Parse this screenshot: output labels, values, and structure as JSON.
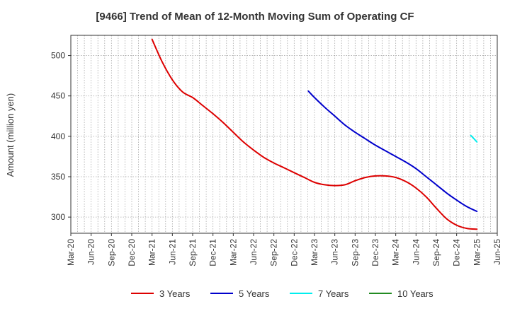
{
  "chart_data": {
    "type": "line",
    "title": "[9466]  Trend of Mean of 12-Month Moving Sum of Operating CF",
    "xlabel": "",
    "ylabel": "Amount (million yen)",
    "ylim": [
      280,
      525
    ],
    "yticks": [
      300,
      350,
      400,
      450,
      500
    ],
    "x_tick_labels": [
      "Mar-20",
      "Jun-20",
      "Sep-20",
      "Dec-20",
      "Mar-21",
      "Jun-21",
      "Sep-21",
      "Dec-21",
      "Mar-22",
      "Jun-22",
      "Sep-22",
      "Dec-22",
      "Mar-23",
      "Jun-23",
      "Sep-23",
      "Dec-23",
      "Mar-24",
      "Jun-24",
      "Sep-24",
      "Dec-24",
      "Mar-25",
      "Jun-25"
    ],
    "grid": true,
    "legend_position": "bottom",
    "series": [
      {
        "name": "3 Years",
        "color": "#dd0000",
        "points": [
          [
            4,
            520
          ],
          [
            4.5,
            492
          ],
          [
            5,
            470
          ],
          [
            5.5,
            455
          ],
          [
            6,
            448
          ],
          [
            6.5,
            438
          ],
          [
            7,
            428
          ],
          [
            7.5,
            417
          ],
          [
            8,
            405
          ],
          [
            8.5,
            393
          ],
          [
            9,
            383
          ],
          [
            9.5,
            374
          ],
          [
            10,
            367
          ],
          [
            10.5,
            361
          ],
          [
            11,
            355
          ],
          [
            11.5,
            349
          ],
          [
            12,
            343
          ],
          [
            12.5,
            340
          ],
          [
            13,
            339
          ],
          [
            13.5,
            340
          ],
          [
            14,
            345
          ],
          [
            14.5,
            349
          ],
          [
            15,
            351
          ],
          [
            15.5,
            351
          ],
          [
            16,
            349
          ],
          [
            16.5,
            344
          ],
          [
            17,
            336
          ],
          [
            17.5,
            325
          ],
          [
            18,
            311
          ],
          [
            18.5,
            298
          ],
          [
            19,
            290
          ],
          [
            19.5,
            286
          ],
          [
            20,
            285
          ]
        ]
      },
      {
        "name": "5 Years",
        "color": "#0000cc",
        "points": [
          [
            11.7,
            456
          ],
          [
            12,
            448
          ],
          [
            12.5,
            436
          ],
          [
            13,
            425
          ],
          [
            13.5,
            414
          ],
          [
            14,
            405
          ],
          [
            14.5,
            397
          ],
          [
            15,
            389
          ],
          [
            15.5,
            382
          ],
          [
            16,
            375
          ],
          [
            16.5,
            368
          ],
          [
            17,
            360
          ],
          [
            17.5,
            350
          ],
          [
            18,
            340
          ],
          [
            18.5,
            330
          ],
          [
            19,
            321
          ],
          [
            19.5,
            313
          ],
          [
            20,
            307
          ]
        ]
      },
      {
        "name": "7 Years",
        "color": "#00eeee",
        "points": [
          [
            19.7,
            401
          ],
          [
            20,
            393
          ]
        ]
      },
      {
        "name": "10 Years",
        "color": "#228b22",
        "points": []
      }
    ]
  }
}
